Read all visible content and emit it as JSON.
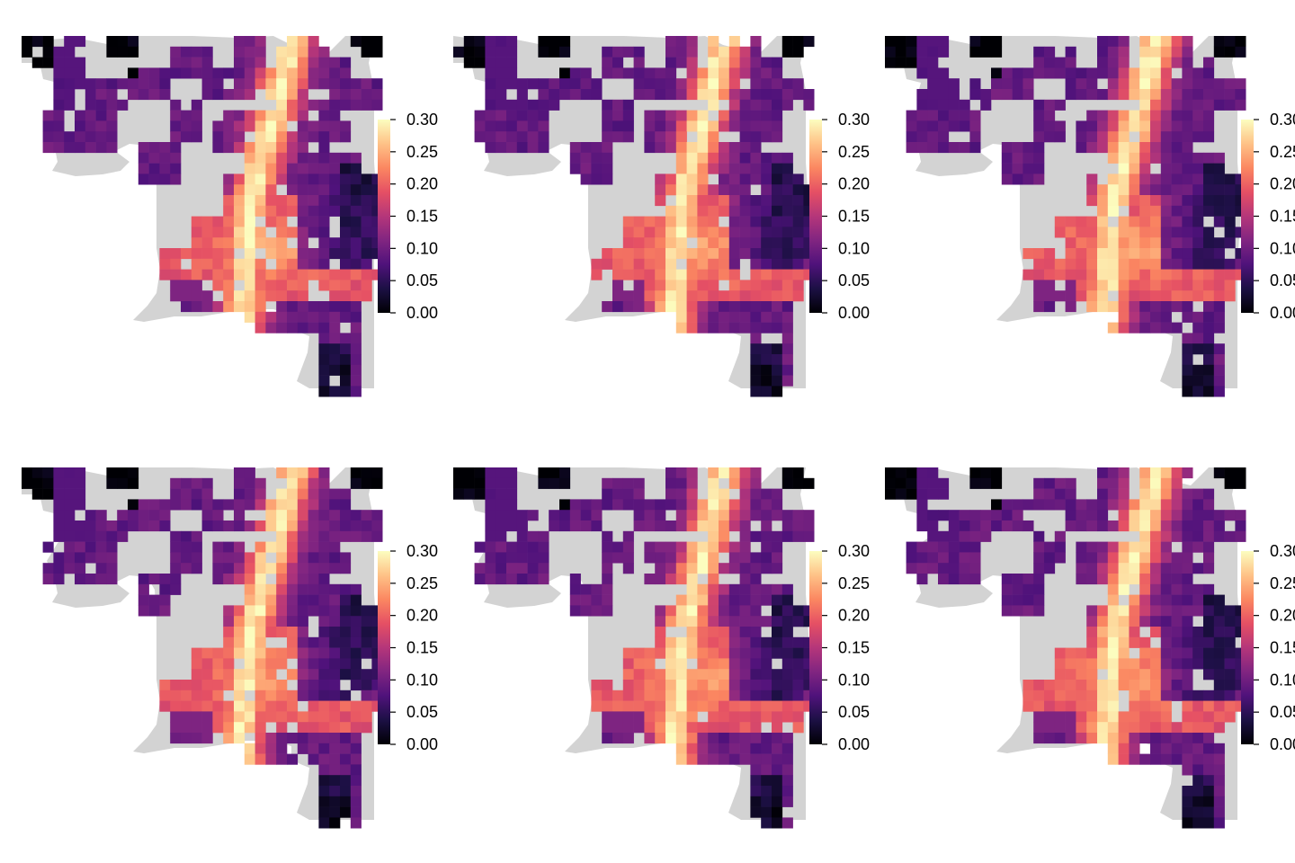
{
  "figure": {
    "panel_count": 6,
    "layout": "2 rows x 3 columns",
    "background_color": "#ffffff",
    "land_color": "#d3d3d3",
    "palette": [
      "#000004",
      "#1c1044",
      "#4f127b",
      "#812581",
      "#b5367a",
      "#e55064",
      "#fb8761",
      "#fec287",
      "#fcfdbf"
    ]
  },
  "legend": {
    "ticks": [
      "0.30",
      "0.25",
      "0.20",
      "0.15",
      "0.10",
      "0.05",
      "0.00"
    ],
    "min": 0.0,
    "max": 0.3
  },
  "chart_data": {
    "type": "heatmap",
    "value_range": [
      0.0,
      0.3
    ],
    "colorbar_ticks": [
      0.0,
      0.05,
      0.1,
      0.15,
      0.2,
      0.25,
      0.3
    ],
    "panels": [
      {
        "row": 1,
        "col": 1
      },
      {
        "row": 1,
        "col": 2
      },
      {
        "row": 1,
        "col": 3
      },
      {
        "row": 2,
        "col": 1
      },
      {
        "row": 2,
        "col": 2
      },
      {
        "row": 2,
        "col": 3
      }
    ],
    "high_value_region": "north-south band in the upper centre (~0.25-0.30)",
    "low_value_region": "corners and eastern cells (~0.00-0.05)"
  }
}
